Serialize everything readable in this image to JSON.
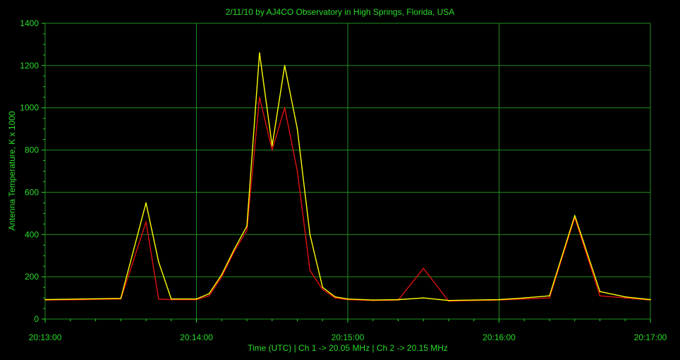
{
  "chart_data": {
    "type": "line",
    "title": "2/11/10  by  AJ4CO Observatory  in  High Springs, Florida, USA",
    "xlabel": "Time (UTC)  |  Ch 1 -> 20.05 MHz  |  Ch 2 -> 20.15 MHz",
    "ylabel": "Antenna Temperature, K x 1000",
    "ylim": [
      0,
      1400
    ],
    "yticks": [
      0,
      200,
      400,
      600,
      800,
      1000,
      1200,
      1400
    ],
    "xlim": [
      "20:13:00",
      "20:17:00"
    ],
    "xticks": [
      "20:13:00",
      "20:14:00",
      "20:15:00",
      "20:16:00",
      "20:17:00"
    ],
    "grid": true,
    "colors": {
      "background": "#000000",
      "grid": "#1f8f1f",
      "text": "#2adb2a",
      "ch1": "#e01010",
      "ch2": "#ffff00"
    },
    "series": [
      {
        "color": "#e01010",
        "x": [
          "20:13:00",
          "20:13:15",
          "20:13:30",
          "20:13:40",
          "20:13:45",
          "20:13:50",
          "20:14:00",
          "20:14:05",
          "20:14:10",
          "20:14:15",
          "20:14:20",
          "20:14:25",
          "20:14:30",
          "20:14:35",
          "20:14:40",
          "20:14:45",
          "20:14:50",
          "20:14:55",
          "20:15:00",
          "20:15:10",
          "20:15:20",
          "20:15:30",
          "20:15:40",
          "20:15:50",
          "20:16:00",
          "20:16:10",
          "20:16:20",
          "20:16:30",
          "20:16:40",
          "20:16:50",
          "20:17:00"
        ],
        "y": [
          90,
          92,
          95,
          460,
          95,
          92,
          92,
          110,
          200,
          320,
          420,
          1050,
          800,
          1000,
          700,
          230,
          140,
          100,
          92,
          88,
          90,
          240,
          85,
          88,
          90,
          95,
          100,
          480,
          110,
          100,
          90
        ]
      },
      {
        "color": "#ffff00",
        "x": [
          "20:13:00",
          "20:13:15",
          "20:13:30",
          "20:13:40",
          "20:13:45",
          "20:13:50",
          "20:14:00",
          "20:14:05",
          "20:14:10",
          "20:14:15",
          "20:14:20",
          "20:14:25",
          "20:14:30",
          "20:14:35",
          "20:14:40",
          "20:14:45",
          "20:14:50",
          "20:14:55",
          "20:15:00",
          "20:15:10",
          "20:15:20",
          "20:15:30",
          "20:15:40",
          "20:15:50",
          "20:16:00",
          "20:16:10",
          "20:16:20",
          "20:16:30",
          "20:16:40",
          "20:16:50",
          "20:17:00"
        ],
        "y": [
          92,
          95,
          98,
          550,
          270,
          95,
          95,
          120,
          210,
          330,
          440,
          1260,
          820,
          1200,
          900,
          400,
          150,
          105,
          95,
          90,
          92,
          100,
          88,
          90,
          92,
          100,
          110,
          490,
          130,
          105,
          92
        ]
      }
    ]
  }
}
